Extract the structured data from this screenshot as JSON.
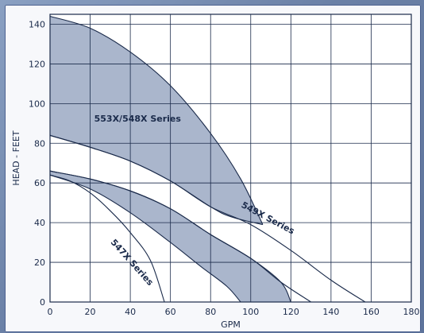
{
  "chart_data": {
    "type": "area",
    "title": "",
    "xlabel": "GPM",
    "ylabel": "HEAD - FEET",
    "xlim": [
      0,
      180
    ],
    "ylim": [
      0,
      145
    ],
    "x_ticks": [
      0,
      20,
      40,
      60,
      80,
      100,
      120,
      140,
      160,
      180
    ],
    "y_ticks": [
      0,
      20,
      40,
      60,
      80,
      100,
      120,
      140
    ],
    "grid": true,
    "fill_color": "#aab6cc",
    "line_color": "#1a2a4a",
    "bands": [
      {
        "name": "553X/548X Series",
        "label_at": [
          22,
          91
        ],
        "label_angle": 0,
        "filled": true,
        "upper": [
          [
            0,
            144
          ],
          [
            20,
            138
          ],
          [
            40,
            126
          ],
          [
            60,
            109
          ],
          [
            80,
            85
          ],
          [
            95,
            62
          ],
          [
            106,
            39
          ]
        ],
        "lower": [
          [
            0,
            84
          ],
          [
            20,
            78
          ],
          [
            40,
            71
          ],
          [
            60,
            61
          ],
          [
            80,
            48
          ],
          [
            90,
            43
          ],
          [
            106,
            39
          ]
        ]
      },
      {
        "name": "549X Series",
        "label_at": [
          95,
          48
        ],
        "label_angle": 28,
        "filled": false,
        "upper": [
          [
            0,
            84
          ],
          [
            20,
            78
          ],
          [
            40,
            71
          ],
          [
            60,
            61
          ],
          [
            80,
            48
          ],
          [
            100,
            39
          ],
          [
            120,
            26
          ],
          [
            140,
            11
          ],
          [
            157,
            0
          ]
        ],
        "lower": [
          [
            0,
            66
          ],
          [
            20,
            62
          ],
          [
            40,
            56
          ],
          [
            60,
            47
          ],
          [
            80,
            34
          ],
          [
            100,
            22
          ],
          [
            115,
            10
          ],
          [
            130,
            0
          ]
        ]
      },
      {
        "name": "",
        "filled": true,
        "upper": [
          [
            0,
            66
          ],
          [
            20,
            62
          ],
          [
            40,
            56
          ],
          [
            60,
            47
          ],
          [
            80,
            34
          ],
          [
            100,
            22
          ],
          [
            115,
            10
          ],
          [
            120,
            0
          ]
        ],
        "lower": [
          [
            0,
            64
          ],
          [
            20,
            57
          ],
          [
            40,
            45
          ],
          [
            60,
            30
          ],
          [
            75,
            18
          ],
          [
            88,
            8
          ],
          [
            95,
            0
          ]
        ]
      },
      {
        "name": "547X Series",
        "label_at": [
          30,
          30
        ],
        "label_angle": 48,
        "filled": false,
        "upper": [
          [
            0,
            64
          ],
          [
            10,
            61
          ],
          [
            20,
            55
          ],
          [
            30,
            46
          ],
          [
            40,
            35
          ],
          [
            50,
            21
          ],
          [
            57,
            0
          ]
        ],
        "lower": [
          [
            57,
            0
          ]
        ]
      }
    ]
  }
}
